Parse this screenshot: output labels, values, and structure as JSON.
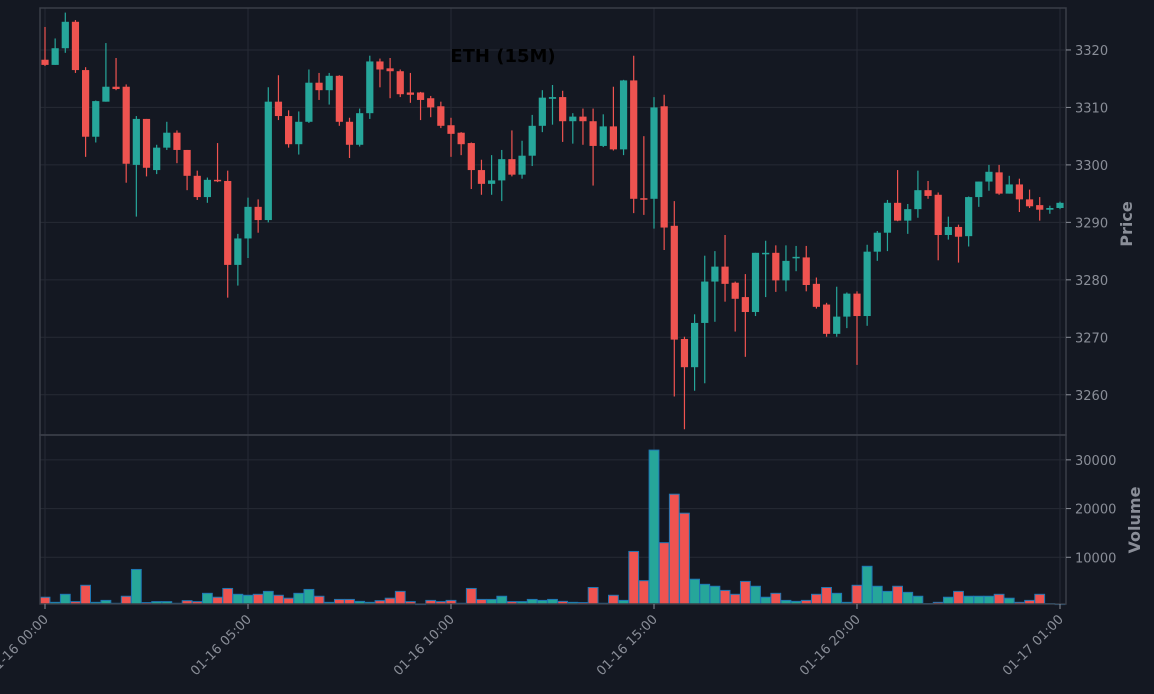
{
  "chart_data": {
    "type": "candlestick",
    "title": "ETH (15M)",
    "price_panel": {
      "ylabel": "Price",
      "ylim": [
        3253.0,
        3327.3
      ],
      "yticks": [
        3260,
        3270,
        3280,
        3290,
        3300,
        3310,
        3320
      ],
      "grid": true
    },
    "volume_panel": {
      "ylabel": "Volume",
      "ylim": [
        0,
        35100
      ],
      "yticks": [
        10000,
        20000,
        30000
      ],
      "grid": true
    },
    "xticks": [
      "01-16 00:00",
      "01-16 05:00",
      "01-16 10:00",
      "01-16 15:00",
      "01-16 20:00",
      "01-17 01:00"
    ],
    "xtick_index": [
      0,
      20,
      40,
      60,
      80,
      100
    ],
    "interval_minutes": 15,
    "colors": {
      "up": "#26a69a",
      "down": "#ef5350",
      "volume_edge": "#1f77b4",
      "grid": "#262a35",
      "background": "#141822"
    },
    "ohlc": [
      [
        3318.3,
        3324,
        3317.2,
        3317.4
      ],
      [
        3317.4,
        3322,
        3317.4,
        3320.3
      ],
      [
        3320.3,
        3326.5,
        3319.5,
        3324.9
      ],
      [
        3324.9,
        3325.2,
        3316,
        3316.5
      ],
      [
        3316.5,
        3317,
        3301.4,
        3304.9
      ],
      [
        3304.9,
        3311.2,
        3303.9,
        3311.1
      ],
      [
        3311,
        3321.2,
        3311,
        3313.6
      ],
      [
        3313.6,
        3318.6,
        3313,
        3313.2
      ],
      [
        3313.6,
        3314,
        3296.9,
        3300.2
      ],
      [
        3300,
        3308.5,
        3291,
        3308
      ],
      [
        3308,
        3308,
        3298,
        3299.5
      ],
      [
        3299.1,
        3303.5,
        3298.4,
        3303
      ],
      [
        3303,
        3307.5,
        3302.6,
        3305.6
      ],
      [
        3305.6,
        3306,
        3300.3,
        3302.6
      ],
      [
        3302.6,
        3302.6,
        3295.6,
        3298.1
      ],
      [
        3298.1,
        3299,
        3293.9,
        3294.4
      ],
      [
        3294.4,
        3297.8,
        3293.4,
        3297.4
      ],
      [
        3297.4,
        3303.8,
        3297,
        3297.2
      ],
      [
        3297.2,
        3299,
        3276.9,
        3282.6
      ],
      [
        3282.6,
        3288,
        3279,
        3287.2
      ],
      [
        3287.2,
        3294.3,
        3283.8,
        3292.7
      ],
      [
        3292.7,
        3294,
        3288.2,
        3290.4
      ],
      [
        3290.4,
        3313.5,
        3290,
        3311
      ],
      [
        3311,
        3315.6,
        3307.8,
        3308.5
      ],
      [
        3308.5,
        3309.5,
        3303,
        3303.6
      ],
      [
        3303.6,
        3309.3,
        3301.8,
        3307.5
      ],
      [
        3307.5,
        3316.6,
        3307.3,
        3314.3
      ],
      [
        3314.3,
        3316,
        3311.3,
        3313
      ],
      [
        3313,
        3316,
        3310.5,
        3315.5
      ],
      [
        3315.5,
        3315.6,
        3306.8,
        3307.5
      ],
      [
        3307.5,
        3308.2,
        3301.2,
        3303.5
      ],
      [
        3303.5,
        3309.8,
        3303.2,
        3309
      ],
      [
        3309,
        3319,
        3308,
        3318
      ],
      [
        3318,
        3318.5,
        3313.5,
        3316.6
      ],
      [
        3316.8,
        3318.6,
        3311.6,
        3316.3
      ],
      [
        3316.3,
        3316.6,
        3311.8,
        3312.3
      ],
      [
        3312.6,
        3316,
        3310.8,
        3312.2
      ],
      [
        3312.6,
        3312.7,
        3307.8,
        3311.3
      ],
      [
        3311.6,
        3312,
        3308.3,
        3310
      ],
      [
        3310.2,
        3311,
        3306.4,
        3306.8
      ],
      [
        3306.9,
        3308.2,
        3301.4,
        3305.4
      ],
      [
        3305.6,
        3305.7,
        3301.7,
        3303.6
      ],
      [
        3303.8,
        3303.9,
        3295.8,
        3299.1
      ],
      [
        3299.1,
        3300.9,
        3294.8,
        3296.7
      ],
      [
        3296.7,
        3301.7,
        3294.8,
        3297.3
      ],
      [
        3297.3,
        3302.6,
        3293.7,
        3301
      ],
      [
        3301,
        3306,
        3298,
        3298.3
      ],
      [
        3298.3,
        3304.2,
        3297.6,
        3301.6
      ],
      [
        3301.6,
        3308.7,
        3299.8,
        3306.8
      ],
      [
        3306.8,
        3313,
        3305.7,
        3311.7
      ],
      [
        3311.5,
        3313.9,
        3307,
        3311.8
      ],
      [
        3311.8,
        3312.9,
        3304,
        3307.6
      ],
      [
        3307.6,
        3309,
        3303.7,
        3308.4
      ],
      [
        3308.4,
        3309.8,
        3303.5,
        3307.6
      ],
      [
        3307.6,
        3309.8,
        3296.4,
        3303.3
      ],
      [
        3303.3,
        3308.8,
        3303.1,
        3306.7
      ],
      [
        3306.7,
        3313.6,
        3302.5,
        3302.7
      ],
      [
        3302.7,
        3314.8,
        3301.7,
        3314.7
      ],
      [
        3314.7,
        3319,
        3291.6,
        3294.1
      ],
      [
        3294.2,
        3305,
        3291.3,
        3294
      ],
      [
        3294.1,
        3311.8,
        3288.9,
        3310
      ],
      [
        3310.2,
        3312.2,
        3285.2,
        3289.1
      ],
      [
        3289.4,
        3293.7,
        3259.7,
        3269.6
      ],
      [
        3269.7,
        3270.1,
        3254,
        3264.8
      ],
      [
        3264.8,
        3274,
        3260.7,
        3272.5
      ],
      [
        3272.5,
        3284.2,
        3262,
        3279.7
      ],
      [
        3279.7,
        3285,
        3272.7,
        3282.3
      ],
      [
        3282.3,
        3287.8,
        3276.2,
        3279.3
      ],
      [
        3279.5,
        3279.7,
        3271,
        3276.7
      ],
      [
        3277,
        3281,
        3266.6,
        3274.4
      ],
      [
        3274.4,
        3284.7,
        3273.7,
        3284.7
      ],
      [
        3284.5,
        3286.8,
        3277,
        3284.7
      ],
      [
        3284.7,
        3286,
        3277.9,
        3279.9
      ],
      [
        3279.9,
        3286,
        3278,
        3283.3
      ],
      [
        3283.8,
        3285.9,
        3281.5,
        3284
      ],
      [
        3283.9,
        3285.9,
        3278,
        3279.1
      ],
      [
        3279.3,
        3280.4,
        3275,
        3275.3
      ],
      [
        3275.7,
        3276,
        3270.1,
        3270.6
      ],
      [
        3270.6,
        3278.8,
        3270.1,
        3273.6
      ],
      [
        3273.6,
        3277.8,
        3271.6,
        3277.6
      ],
      [
        3277.6,
        3278,
        3265.2,
        3273.7
      ],
      [
        3273.7,
        3286.1,
        3272,
        3284.9
      ],
      [
        3284.9,
        3288.5,
        3283.3,
        3288.2
      ],
      [
        3288.2,
        3293.9,
        3285,
        3293.4
      ],
      [
        3293.4,
        3299.1,
        3290.2,
        3290.3
      ],
      [
        3290.3,
        3293.2,
        3288,
        3292.3
      ],
      [
        3292.3,
        3299,
        3290.8,
        3295.6
      ],
      [
        3295.6,
        3297.2,
        3294.1,
        3294.6
      ],
      [
        3294.8,
        3295.2,
        3283.4,
        3287.8
      ],
      [
        3287.8,
        3291,
        3287,
        3289.2
      ],
      [
        3289.2,
        3289.6,
        3283,
        3287.5
      ],
      [
        3287.6,
        3294.5,
        3285.8,
        3294.4
      ],
      [
        3294.4,
        3297.1,
        3292.7,
        3297.1
      ],
      [
        3297.1,
        3300,
        3295.5,
        3298.8
      ],
      [
        3298.7,
        3300,
        3294.8,
        3295
      ],
      [
        3295,
        3298.1,
        3295,
        3296.6
      ],
      [
        3296.6,
        3297.6,
        3291.8,
        3294
      ],
      [
        3294,
        3295.7,
        3292.5,
        3292.8
      ],
      [
        3293,
        3294.4,
        3290.3,
        3292.2
      ],
      [
        3292.2,
        3292.9,
        3291.5,
        3292.5
      ],
      [
        3292.5,
        3293.6,
        3292.3,
        3293.4
      ]
    ],
    "volume": [
      1800,
      750,
      2400,
      900,
      4250,
      750,
      1150,
      550,
      2000,
      7500,
      700,
      900,
      900,
      550,
      1100,
      900,
      2600,
      1800,
      3600,
      2400,
      2200,
      2400,
      3000,
      2200,
      1600,
      2600,
      3400,
      2000,
      750,
      1350,
      1350,
      950,
      750,
      1100,
      1600,
      3000,
      900,
      400,
      1150,
      900,
      1150,
      550,
      3600,
      1350,
      1350,
      2000,
      900,
      900,
      1350,
      1150,
      1350,
      950,
      750,
      700,
      3800,
      550,
      2200,
      1150,
      11200,
      5200,
      32000,
      13000,
      22950,
      19050,
      5500,
      4450,
      4050,
      3200,
      2400,
      5050,
      4050,
      1800,
      2600,
      1150,
      950,
      1150,
      2400,
      3800,
      2600,
      750,
      4250,
      8150,
      4050,
      3000,
      4050,
      2800,
      2000,
      500,
      750,
      1800,
      3000,
      2000,
      2000,
      2000,
      2400,
      1600,
      750,
      1150,
      2400,
      500,
      400
    ]
  }
}
